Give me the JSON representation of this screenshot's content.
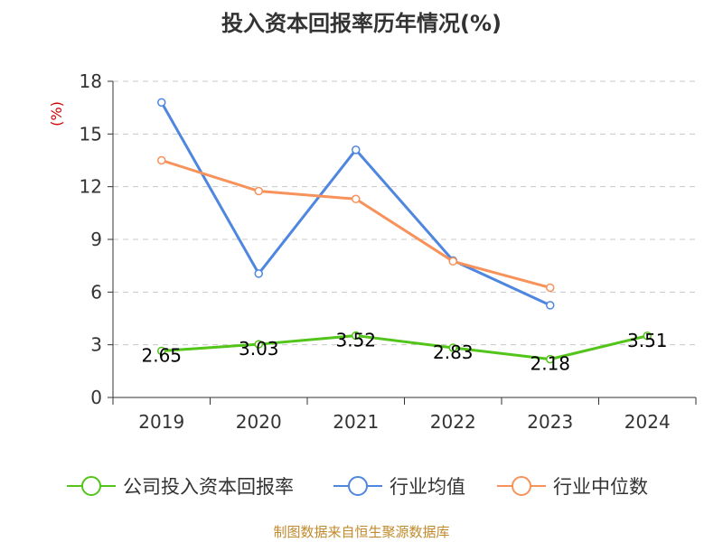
{
  "chart_data": {
    "type": "line",
    "title": "投入资本回报率历年情况(%)",
    "ylabel": "(%)",
    "categories": [
      "2019",
      "2020",
      "2021",
      "2022",
      "2023",
      "2024"
    ],
    "ylim": [
      0,
      18
    ],
    "yticks": [
      0,
      3,
      6,
      9,
      12,
      15,
      18
    ],
    "grid": true,
    "legend_position": "bottom",
    "series": [
      {
        "name": "公司投入资本回报率",
        "color": "#52c41a",
        "values": [
          2.65,
          3.03,
          3.52,
          2.83,
          2.18,
          3.51
        ],
        "show_labels": true
      },
      {
        "name": "行业均值",
        "color": "#4f86e0",
        "values": [
          16.8,
          7.05,
          14.1,
          7.8,
          5.25,
          null
        ],
        "show_labels": false
      },
      {
        "name": "行业中位数",
        "color": "#f7925a",
        "values": [
          13.5,
          11.75,
          11.3,
          7.75,
          6.25,
          null
        ],
        "show_labels": false
      }
    ]
  },
  "source": "制图数据来自恒生聚源数据库"
}
